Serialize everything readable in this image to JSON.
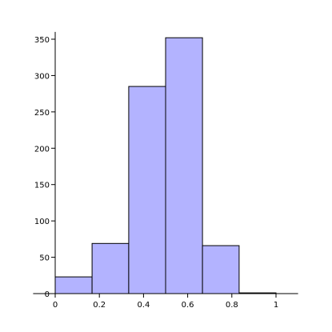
{
  "chart_data": {
    "type": "histogram",
    "bins": [
      0,
      0.167,
      0.333,
      0.5,
      0.667,
      0.833,
      1
    ],
    "values": [
      23,
      69,
      285,
      352,
      66,
      1
    ],
    "color": "#b3b3ff",
    "xlim": [
      -0.1,
      1.1
    ],
    "ylim": [
      0,
      360
    ],
    "xticks": [
      0,
      0.2,
      0.4,
      0.6,
      0.8,
      1
    ],
    "yticks": [
      0,
      50,
      100,
      150,
      200,
      250,
      300,
      350
    ]
  }
}
